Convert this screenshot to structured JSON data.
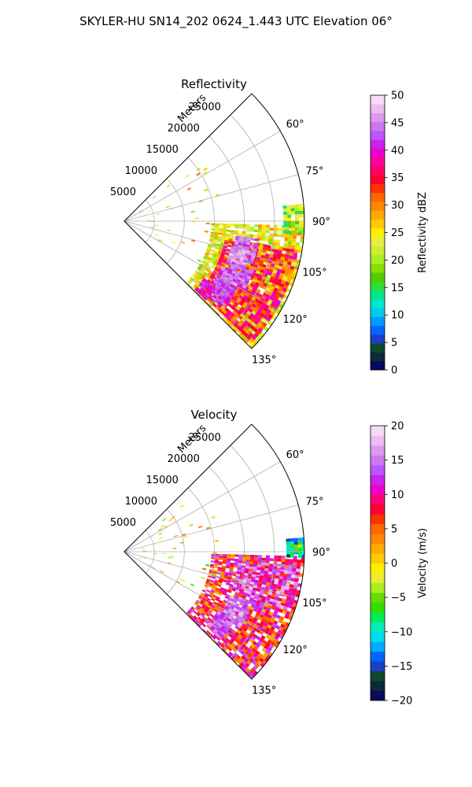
{
  "figure": {
    "title": "SKYLER-HU  SN14_202  0624_1.443 UTC Elevation 06°"
  },
  "colors": {
    "grid": "#b0b0b0",
    "frame": "#000000"
  },
  "chart_data": [
    {
      "type": "heatmap",
      "subtype": "polar-sector",
      "title": "Reflectivity",
      "r_axis_label": "Meters",
      "r_ticks": [
        5000,
        10000,
        15000,
        20000,
        25000
      ],
      "r_range": [
        0,
        30000
      ],
      "theta_range_deg": [
        45,
        135
      ],
      "theta_tick_labels": [
        "60°",
        "75°",
        "90°",
        "105°",
        "120°",
        "135°"
      ],
      "theta_ticks_deg": [
        60,
        75,
        90,
        105,
        120,
        135
      ],
      "grid": true,
      "colorbar": {
        "label": "Reflectivity dBZ",
        "range": [
          0,
          50
        ],
        "ticks": [
          "0",
          "5",
          "10",
          "15",
          "20",
          "25",
          "30",
          "35",
          "40",
          "45",
          "50"
        ],
        "colormap": [
          "#0a0a5e",
          "#0b2a3a",
          "#0d4a2a",
          "#1b3fc9",
          "#0066ff",
          "#0099ff",
          "#00ccee",
          "#00e6cc",
          "#00e68a",
          "#33dd33",
          "#55cc00",
          "#88dd00",
          "#aaee22",
          "#ccee33",
          "#e6ee44",
          "#ffee00",
          "#ffcc00",
          "#ffaa00",
          "#ff8800",
          "#ff6600",
          "#ff3300",
          "#ff0033",
          "#ff0066",
          "#ff0099",
          "#ee00cc",
          "#cc22ee",
          "#bb55ff",
          "#cc77ee",
          "#dd99ee",
          "#eebbf0",
          "#f7dcf7"
        ]
      },
      "features": [
        {
          "kind": "cell",
          "az": 103,
          "r": 20500,
          "dr": 1800,
          "dth": 5,
          "level": 44
        },
        {
          "kind": "cell",
          "az": 108,
          "r": 19800,
          "dr": 1500,
          "dth": 4,
          "level": 46
        },
        {
          "kind": "cell",
          "az": 115,
          "r": 21000,
          "dr": 1800,
          "dth": 4,
          "level": 44
        },
        {
          "kind": "cell",
          "az": 120,
          "r": 19500,
          "dr": 1600,
          "dth": 5,
          "level": 43
        },
        {
          "kind": "cell",
          "az": 126,
          "r": 20200,
          "dr": 1500,
          "dth": 5,
          "level": 42
        },
        {
          "kind": "cell",
          "az": 130,
          "r": 17500,
          "dr": 1200,
          "dth": 4,
          "level": 40
        },
        {
          "kind": "band",
          "az0": 92,
          "az1": 136,
          "r0": 14500,
          "r1": 29500,
          "level": 24
        },
        {
          "kind": "band",
          "az0": 100,
          "az1": 134,
          "r0": 17000,
          "r1": 29000,
          "level": 34
        },
        {
          "kind": "band",
          "az0": 85,
          "az1": 94,
          "r0": 26500,
          "r1": 29800,
          "level": 20
        }
      ]
    },
    {
      "type": "heatmap",
      "subtype": "polar-sector",
      "title": "Velocity",
      "r_axis_label": "Meters",
      "r_ticks": [
        5000,
        10000,
        15000,
        20000,
        25000
      ],
      "r_range": [
        0,
        30000
      ],
      "theta_range_deg": [
        45,
        135
      ],
      "theta_tick_labels": [
        "60°",
        "75°",
        "90°",
        "105°",
        "120°",
        "135°"
      ],
      "theta_ticks_deg": [
        60,
        75,
        90,
        105,
        120,
        135
      ],
      "grid": true,
      "colorbar": {
        "label": "Velocity (m/s)",
        "range": [
          -20,
          20
        ],
        "ticks": [
          "−20",
          "−15",
          "−10",
          "−5",
          "0",
          "5",
          "10",
          "15",
          "20"
        ],
        "colormap": [
          "#0a0a5e",
          "#0b2a3a",
          "#0d4a2a",
          "#1b3fc9",
          "#0066ff",
          "#00aaff",
          "#00ddee",
          "#00eebb",
          "#00ee55",
          "#33dd00",
          "#66dd00",
          "#aaee22",
          "#e6ee33",
          "#ffee00",
          "#ffcc00",
          "#ffaa00",
          "#ff8800",
          "#ff6600",
          "#ff3300",
          "#ff0033",
          "#ff0077",
          "#ee00cc",
          "#cc22ee",
          "#bb55ff",
          "#cc77ee",
          "#dd99ee",
          "#eebbf0",
          "#f7dcf7"
        ]
      },
      "features": [
        {
          "kind": "band",
          "az0": 92,
          "az1": 136,
          "r0": 14500,
          "r1": 29500,
          "level": 8
        },
        {
          "kind": "band",
          "az0": 95,
          "az1": 110,
          "r0": 19000,
          "r1": 29000,
          "level": 14
        },
        {
          "kind": "cell",
          "az": 118,
          "r": 21000,
          "dr": 1800,
          "dth": 6,
          "level": 15
        },
        {
          "kind": "cell",
          "az": 127,
          "r": 20000,
          "dr": 1500,
          "dth": 5,
          "level": 14
        },
        {
          "kind": "band",
          "az0": 86,
          "az1": 92,
          "r0": 27000,
          "r1": 29800,
          "level": -10
        }
      ]
    }
  ]
}
